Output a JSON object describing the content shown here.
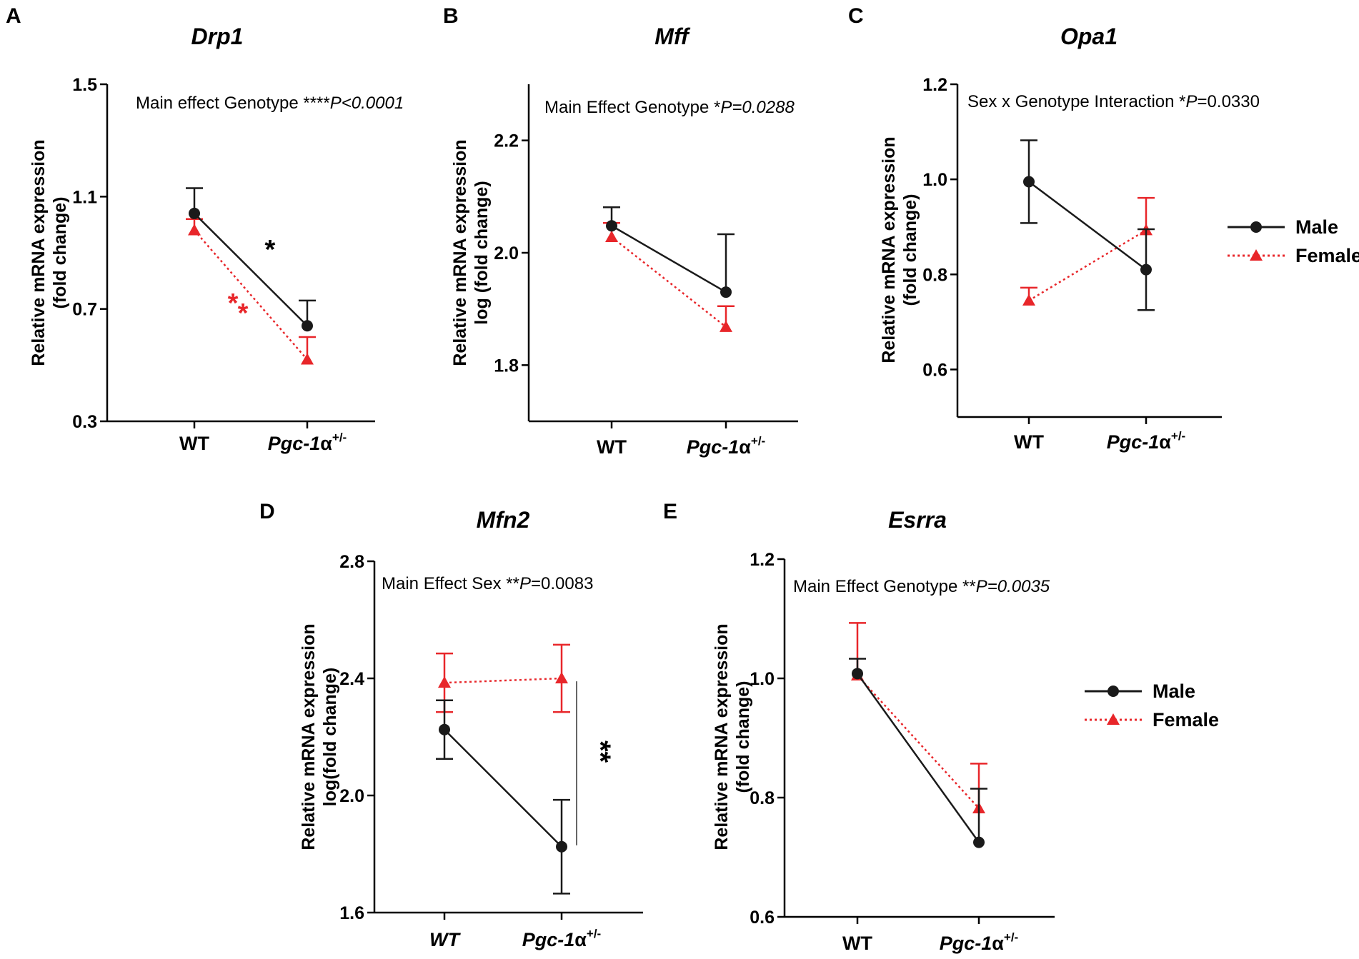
{
  "legend": {
    "male": "Male",
    "female": "Female"
  },
  "colors": {
    "male": "#1a1a1a",
    "female": "#e8262a"
  },
  "chart_data": [
    {
      "panel": "A",
      "type": "line",
      "title": "Drp1",
      "ylabel": [
        "Relative mRNA expression",
        "(fold change)"
      ],
      "ylim": [
        0.3,
        1.5
      ],
      "yticks": [
        "0.3",
        "0.7",
        "1.1",
        "1.5"
      ],
      "categories": [
        "WT",
        "Pgc-1α+/-"
      ],
      "annotation": {
        "prefix": "Main effect Genotype ****",
        "italic": "P<0.0001",
        "suffix": ""
      },
      "series": [
        {
          "name": "Male",
          "values": [
            1.04,
            0.64
          ],
          "err": [
            0.09,
            0.09
          ],
          "errdir": [
            "up",
            "up"
          ]
        },
        {
          "name": "Female",
          "values": [
            0.98,
            0.52
          ],
          "err": [
            0.04,
            0.08
          ],
          "errdir": [
            "up",
            "up"
          ]
        }
      ],
      "sig": [
        {
          "text": "*",
          "color": "male",
          "x": 0.67,
          "y": 0.92
        },
        {
          "text": "**",
          "color": "female",
          "x": 0.38,
          "y": 0.73
        }
      ]
    },
    {
      "panel": "B",
      "type": "line",
      "title": "Mff",
      "ylabel": [
        "Relative mRNA expression",
        "log (fold change)"
      ],
      "ylim": [
        1.7,
        2.3
      ],
      "yticks": [
        "1.8",
        "2.0",
        "2.2"
      ],
      "categories": [
        "WT",
        "Pgc-1α+/-"
      ],
      "annotation": {
        "prefix": "Main Effect Genotype *",
        "italic": "P=0.0288",
        "suffix": ""
      },
      "series": [
        {
          "name": "Male",
          "values": [
            2.048,
            1.93
          ],
          "err": [
            0.033,
            0.103
          ],
          "errdir": [
            "up",
            "up"
          ]
        },
        {
          "name": "Female",
          "values": [
            2.028,
            1.868
          ],
          "err": [
            0.025,
            0.037
          ],
          "errdir": [
            "up",
            "up"
          ]
        }
      ],
      "sig": []
    },
    {
      "panel": "C",
      "type": "line",
      "title": "Opa1",
      "ylabel": [
        "Relative mRNA expression",
        "(fold change)"
      ],
      "ylim": [
        0.5,
        1.2
      ],
      "yticks": [
        "0.6",
        "0.8",
        "1.0",
        "1.2"
      ],
      "categories": [
        "WT",
        "Pgc-1α+/-"
      ],
      "annotation": {
        "prefix": "Sex x Genotype Interaction *",
        "italic": "P",
        "suffix": "=0.0330"
      },
      "series": [
        {
          "name": "Male",
          "values": [
            0.995,
            0.81
          ],
          "err": [
            0.087,
            0.085
          ],
          "errdir": [
            "both",
            "both"
          ]
        },
        {
          "name": "Female",
          "values": [
            0.745,
            0.893
          ],
          "err": [
            0.027,
            0.068
          ],
          "errdir": [
            "up",
            "up"
          ]
        }
      ],
      "sig": []
    },
    {
      "panel": "D",
      "type": "line",
      "title": "Mfn2",
      "ylabel": [
        "Relative mRNA expression",
        "log(fold change)"
      ],
      "ylim": [
        1.6,
        2.8
      ],
      "yticks": [
        "1.6",
        "2.0",
        "2.4",
        "2.8"
      ],
      "categories": [
        "WT",
        "Pgc-1α+/-"
      ],
      "italicCats": [
        true,
        true
      ],
      "annotation": {
        "prefix": "Main Effect Sex **",
        "italic": "P",
        "suffix": "=0.0083"
      },
      "series": [
        {
          "name": "Male",
          "values": [
            2.225,
            1.825
          ],
          "err": [
            0.1,
            0.16
          ],
          "errdir": [
            "both",
            "both"
          ]
        },
        {
          "name": "Female",
          "values": [
            2.385,
            2.4
          ],
          "err": [
            0.1,
            0.115
          ],
          "errdir": [
            "both",
            "both"
          ]
        }
      ],
      "sig": [
        {
          "text": "**",
          "color": "male",
          "x": 1.25,
          "y": 2.15,
          "rotate": true
        }
      ]
    },
    {
      "panel": "E",
      "type": "line",
      "title": "Esrra",
      "ylabel": [
        "Relative mRNA expression",
        "(fold change)"
      ],
      "ylim": [
        0.6,
        1.2
      ],
      "yticks": [
        "0.6",
        "0.8",
        "1.0",
        "1.2"
      ],
      "categories": [
        "WT",
        "Pgc-1α+/-"
      ],
      "annotation": {
        "prefix": "Main Effect Genotype  **",
        "italic": "P=0.0035",
        "suffix": ""
      },
      "series": [
        {
          "name": "Male",
          "values": [
            1.008,
            0.725
          ],
          "err": [
            0.025,
            0.09
          ],
          "errdir": [
            "up",
            "up"
          ]
        },
        {
          "name": "Female",
          "values": [
            1.005,
            0.782
          ],
          "err": [
            0.088,
            0.075
          ],
          "errdir": [
            "up",
            "up"
          ]
        }
      ],
      "sig": []
    }
  ]
}
